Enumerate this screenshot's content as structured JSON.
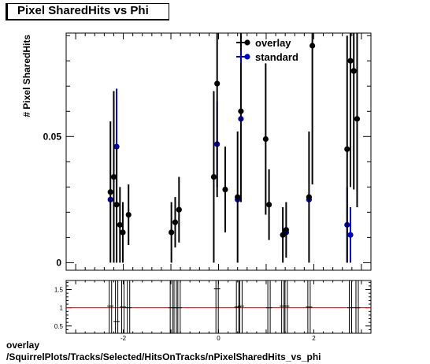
{
  "chart_data": {
    "type": "scatter",
    "title": "Pixel SharedHits vs Phi",
    "ylabel": "# Pixel SharedHits",
    "xlabel": "",
    "xlim": [
      -3.2,
      3.2
    ],
    "ylim": [
      -0.003,
      0.091
    ],
    "x_ticks": [
      "-2",
      "0",
      "2"
    ],
    "y_ticks": [
      "0",
      "0.05"
    ],
    "legend_position": "top-right",
    "series": [
      {
        "name": "overlay",
        "color": "#000000",
        "points": [
          {
            "x": -2.27,
            "y": 0.028,
            "err": 0.028
          },
          {
            "x": -2.2,
            "y": 0.034,
            "err": 0.034
          },
          {
            "x": -2.14,
            "y": 0.023,
            "err": 0.023
          },
          {
            "x": -2.07,
            "y": 0.015,
            "err": 0.015
          },
          {
            "x": -2.01,
            "y": 0.012,
            "err": 0.012
          },
          {
            "x": -1.89,
            "y": 0.019,
            "err": 0.012
          },
          {
            "x": -0.99,
            "y": 0.012,
            "err": 0.012
          },
          {
            "x": -0.91,
            "y": 0.016,
            "err": 0.01
          },
          {
            "x": -0.83,
            "y": 0.021,
            "err": 0.013
          },
          {
            "x": -0.1,
            "y": 0.034,
            "err": 0.034
          },
          {
            "x": -0.03,
            "y": 0.071,
            "err": 0.045
          },
          {
            "x": 0.14,
            "y": 0.029,
            "err": 0.017
          },
          {
            "x": 0.4,
            "y": 0.026,
            "err": 0.026
          },
          {
            "x": 0.47,
            "y": 0.06,
            "err": 0.036
          },
          {
            "x": 0.99,
            "y": 0.049,
            "err": 0.03
          },
          {
            "x": 1.06,
            "y": 0.023,
            "err": 0.014
          },
          {
            "x": 1.35,
            "y": 0.011,
            "err": 0.011
          },
          {
            "x": 1.42,
            "y": 0.013,
            "err": 0.011
          },
          {
            "x": 1.9,
            "y": 0.026,
            "err": 0.026
          },
          {
            "x": 1.97,
            "y": 0.086,
            "err": 0.055
          },
          {
            "x": 2.7,
            "y": 0.045,
            "err": 0.045
          },
          {
            "x": 2.77,
            "y": 0.08,
            "err": 0.05
          },
          {
            "x": 2.84,
            "y": 0.076,
            "err": 0.047
          },
          {
            "x": 2.91,
            "y": 0.057,
            "err": 0.035
          }
        ]
      },
      {
        "name": "standard",
        "color": "#0000cc",
        "points": [
          {
            "x": -2.27,
            "y": 0.025,
            "err": 0.0
          },
          {
            "x": -2.14,
            "y": 0.046,
            "err": 0.023
          },
          {
            "x": -0.03,
            "y": 0.047,
            "err": 0.017
          },
          {
            "x": 0.4,
            "y": 0.025,
            "err": 0.0
          },
          {
            "x": 0.47,
            "y": 0.057,
            "err": 0.0
          },
          {
            "x": 1.42,
            "y": 0.012,
            "err": 0.0
          },
          {
            "x": 1.9,
            "y": 0.025,
            "err": 0.0
          },
          {
            "x": 2.7,
            "y": 0.015,
            "err": 0.015
          },
          {
            "x": 2.77,
            "y": 0.011,
            "err": 0.011
          },
          {
            "x": 2.84,
            "y": 0.076,
            "err": 0.0
          }
        ]
      }
    ],
    "ratio_panel": {
      "ylim": [
        0.3,
        1.75
      ],
      "y_ticks": [
        "0.5",
        "1",
        "1.5"
      ],
      "reference_line": 1.0,
      "reference_color": "#cc0000",
      "points": [
        {
          "x": -2.27,
          "y": 1.05
        },
        {
          "x": -2.14,
          "y": 0.62
        },
        {
          "x": -2.01,
          "y": 1.02
        },
        {
          "x": -1.89,
          "y": 1.0
        },
        {
          "x": -0.99,
          "y": 1.0
        },
        {
          "x": -0.91,
          "y": 1.0
        },
        {
          "x": -0.83,
          "y": 1.0
        },
        {
          "x": -0.03,
          "y": 1.52
        },
        {
          "x": 0.4,
          "y": 1.02
        },
        {
          "x": 0.47,
          "y": 1.05
        },
        {
          "x": 1.06,
          "y": 1.0
        },
        {
          "x": 1.35,
          "y": 1.05
        },
        {
          "x": 1.42,
          "y": 1.05
        },
        {
          "x": 1.9,
          "y": 1.02
        },
        {
          "x": 2.77,
          "y": 1.0
        },
        {
          "x": 2.91,
          "y": 1.0
        }
      ]
    }
  },
  "footer": {
    "line1": "overlay",
    "line2": "/SquirrelPlots/Tracks/Selected/HitsOnTracks/nPixelSharedHits_vs_phi"
  }
}
